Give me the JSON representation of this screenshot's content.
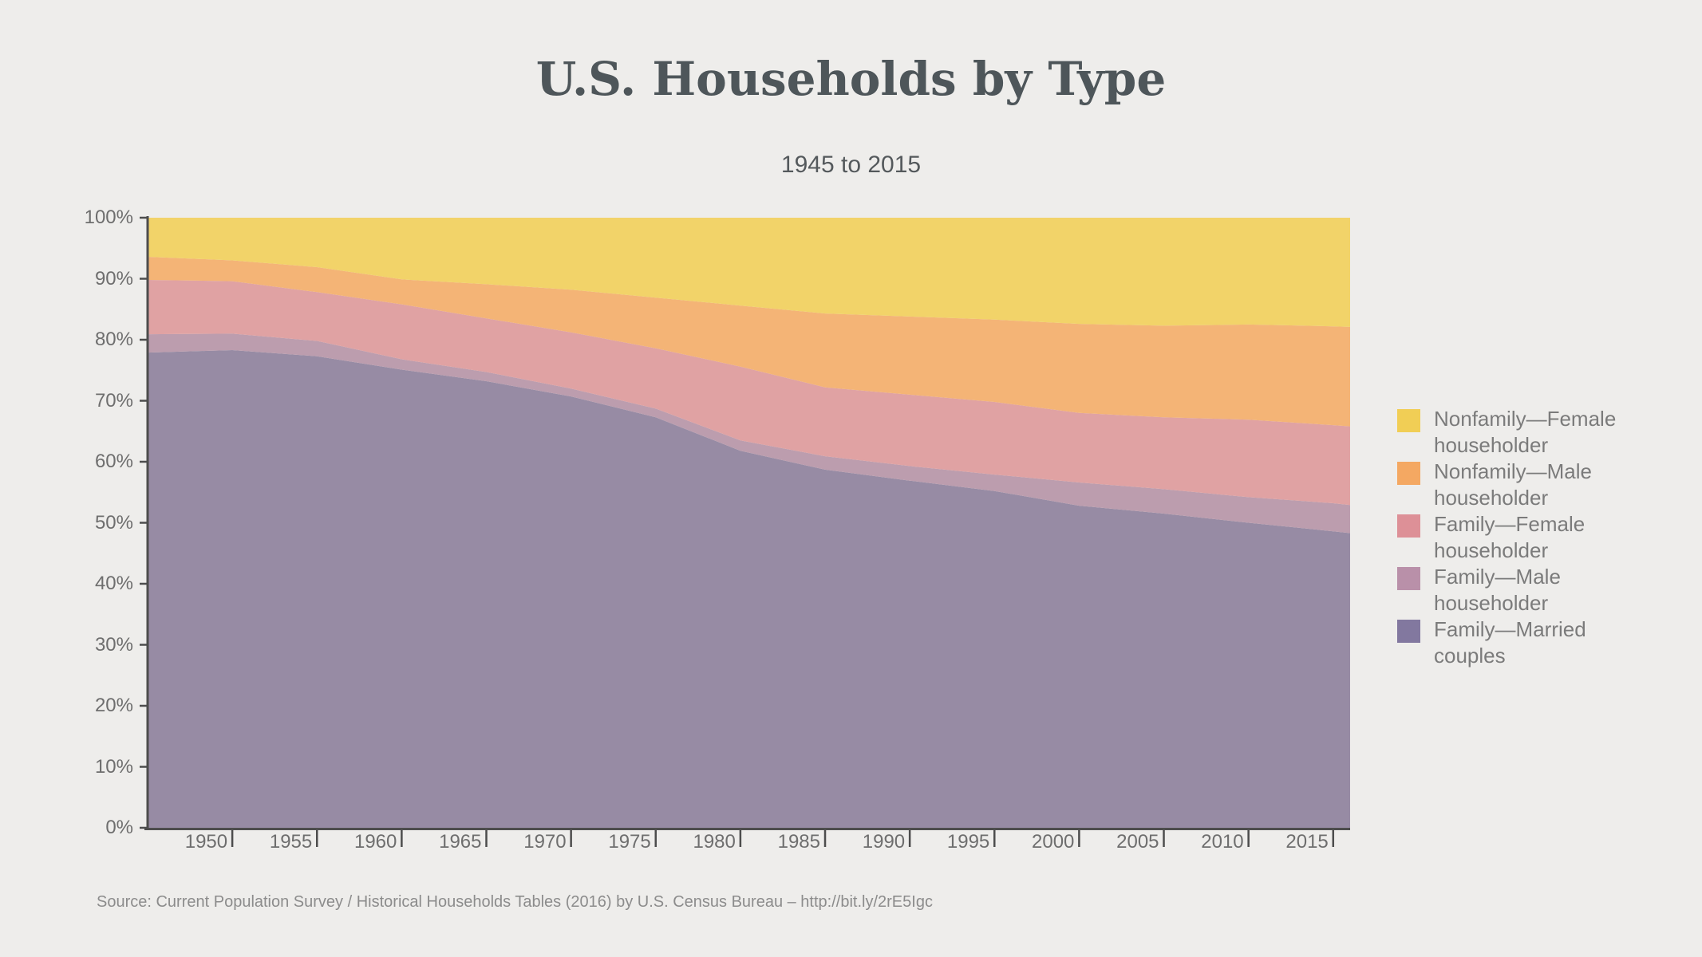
{
  "header": {
    "title": "U.S. Households by Type",
    "subtitle": "1945 to 2015"
  },
  "chart_data": {
    "type": "area",
    "stacked": true,
    "unit": "percent of households",
    "title": "U.S. Households by Type",
    "subtitle": "1945 to 2015",
    "xlabel": "",
    "ylabel": "",
    "xlim": [
      1945,
      2016
    ],
    "ylim": [
      0,
      100
    ],
    "grid": false,
    "legend_position": "right",
    "x": [
      1945,
      1950,
      1955,
      1960,
      1965,
      1970,
      1975,
      1980,
      1985,
      1990,
      1995,
      2000,
      2005,
      2010,
      2015,
      2016
    ],
    "series": [
      {
        "name": "Family—Married couples",
        "color": "#978BA4",
        "values": [
          77.9,
          78.3,
          77.3,
          75.1,
          73.2,
          70.7,
          67.3,
          61.8,
          58.7,
          56.9,
          55.2,
          52.8,
          51.5,
          50.0,
          48.6,
          48.3
        ]
      },
      {
        "name": "Family—Male householder",
        "color": "#BC9DAE",
        "values": [
          3.0,
          2.7,
          2.5,
          1.7,
          1.5,
          1.3,
          1.4,
          1.7,
          2.2,
          2.4,
          2.7,
          3.8,
          4.0,
          4.2,
          4.6,
          4.6
        ]
      },
      {
        "name": "Family—Female householder",
        "color": "#E0A2A3",
        "values": [
          8.9,
          8.6,
          8.0,
          9.0,
          8.8,
          9.2,
          9.9,
          12.1,
          11.3,
          11.7,
          11.9,
          11.4,
          11.8,
          12.7,
          12.8,
          12.9
        ]
      },
      {
        "name": "Nonfamily—Male householder",
        "color": "#F4B476",
        "values": [
          3.8,
          3.4,
          4.1,
          4.1,
          5.6,
          7.0,
          8.3,
          10.0,
          12.1,
          12.8,
          13.5,
          14.6,
          15.0,
          15.6,
          16.2,
          16.3
        ]
      },
      {
        "name": "Nonfamily—Female householder",
        "color": "#F2D369",
        "values": [
          6.4,
          7.0,
          8.1,
          10.1,
          10.9,
          11.8,
          13.1,
          14.4,
          15.7,
          16.2,
          16.7,
          17.4,
          17.7,
          17.5,
          17.8,
          17.9
        ]
      }
    ],
    "x_ticks": [
      1950,
      1955,
      1960,
      1965,
      1970,
      1975,
      1980,
      1985,
      1990,
      1995,
      2000,
      2005,
      2010,
      2015
    ],
    "y_ticks": [
      {
        "value": 0,
        "label": "0%"
      },
      {
        "value": 10,
        "label": "10%"
      },
      {
        "value": 20,
        "label": "20%"
      },
      {
        "value": 30,
        "label": "30%"
      },
      {
        "value": 40,
        "label": "40%"
      },
      {
        "value": 50,
        "label": "50%"
      },
      {
        "value": 60,
        "label": "60%"
      },
      {
        "value": 70,
        "label": "70%"
      },
      {
        "value": 80,
        "label": "80%"
      },
      {
        "value": 90,
        "label": "90%"
      },
      {
        "value": 100,
        "label": "100%"
      }
    ]
  },
  "legend": {
    "items": [
      {
        "label": "Nonfamily—Female householder",
        "color": "#F1CE55"
      },
      {
        "label": "Nonfamily—Male householder",
        "color": "#F4A862"
      },
      {
        "label": "Family—Female householder",
        "color": "#DD9097"
      },
      {
        "label": "Family—Male householder",
        "color": "#B990A9"
      },
      {
        "label": "Family—Married couples",
        "color": "#82789F"
      }
    ]
  },
  "source": {
    "text": "Source: Current Population Survey / Historical Households Tables (2016) by U.S. Census Bureau – http://bit.ly/2rE5Igc"
  },
  "colors": {
    "background": "#EEEDEB",
    "axis": "#4D4D4D",
    "axis_label": "#6E6E6E",
    "title": "#4E565A",
    "subtitle": "#54595C",
    "legend_text": "#7B7B7B",
    "source_text": "#8C8C8C"
  }
}
